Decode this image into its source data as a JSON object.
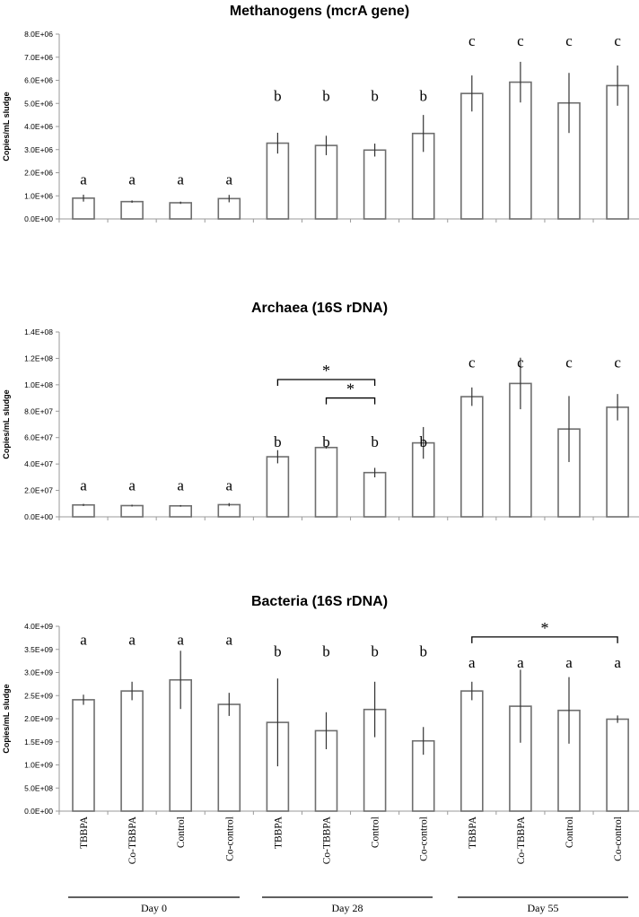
{
  "chart_data": [
    {
      "type": "bar",
      "title": "Methanogens (mcrA gene)",
      "ylabel": "Copies/mL sludge",
      "ylim": [
        0,
        8000000
      ],
      "ticks": [
        0,
        1000000,
        2000000,
        3000000,
        4000000,
        5000000,
        6000000,
        7000000,
        8000000
      ],
      "tick_labels": [
        "0.0E+00",
        "1.0E+06",
        "2.0E+06",
        "3.0E+06",
        "4.0E+06",
        "5.0E+06",
        "6.0E+06",
        "7.0E+06",
        "8.0E+06"
      ],
      "values": [
        900000,
        750000,
        700000,
        880000,
        3280000,
        3180000,
        2980000,
        3700000,
        5430000,
        5920000,
        5020000,
        5770000
      ],
      "errors": [
        150000,
        50000,
        50000,
        160000,
        450000,
        420000,
        280000,
        800000,
        780000,
        880000,
        1300000,
        870000
      ],
      "letters": [
        "a",
        "a",
        "a",
        "a",
        "b",
        "b",
        "b",
        "b",
        "c",
        "c",
        "c",
        "c"
      ],
      "letter_values": [
        1500000,
        1500000,
        1500000,
        1500000,
        5100000,
        5100000,
        5100000,
        5100000,
        7500000,
        7500000,
        7500000,
        7500000
      ],
      "brackets": []
    },
    {
      "type": "bar",
      "title": "Archaea (16S rDNA)",
      "ylabel": "Copies/mL sludge",
      "ylim": [
        0,
        140000000
      ],
      "ticks": [
        0,
        20000000,
        40000000,
        60000000,
        80000000,
        100000000,
        120000000,
        140000000
      ],
      "tick_labels": [
        "0.0E+00",
        "2.0E+07",
        "4.0E+07",
        "6.0E+07",
        "8.0E+07",
        "1.0E+08",
        "1.2E+08",
        "1.4E+08"
      ],
      "values": [
        9000000,
        8500000,
        8300000,
        9200000,
        45500000,
        52500000,
        33500000,
        56000000,
        91000000,
        101000000,
        66500000,
        83000000
      ],
      "errors": [
        800000,
        700000,
        600000,
        1200000,
        5000000,
        800000,
        3600000,
        12000000,
        7000000,
        19500000,
        25000000,
        10000000
      ],
      "letters": [
        "a",
        "a",
        "a",
        "a",
        "b",
        "b",
        "b",
        "b",
        "c",
        "c",
        "c",
        "c"
      ],
      "letter_values": [
        20000000,
        20000000,
        20000000,
        20000000,
        53000000,
        53000000,
        53000000,
        53000000,
        113000000,
        113000000,
        113000000,
        113000000
      ],
      "brackets": [
        {
          "from": 4,
          "to": 6,
          "value": 104000000,
          "label": "*"
        },
        {
          "from": 5,
          "to": 6,
          "value": 90000000,
          "label": "*"
        }
      ]
    },
    {
      "type": "bar",
      "title": "Bacteria (16S rDNA)",
      "ylabel": "Copies/mL sludge",
      "ylim": [
        0,
        4000000000
      ],
      "ticks": [
        0,
        500000000,
        1000000000,
        1500000000,
        2000000000,
        2500000000,
        3000000000,
        3500000000,
        4000000000
      ],
      "tick_labels": [
        "0.0E+00",
        "5.0E+08",
        "1.0E+09",
        "1.5E+09",
        "2.0E+09",
        "2.5E+09",
        "3.0E+09",
        "3.5E+09",
        "4.0E+09"
      ],
      "values": [
        2410000000,
        2600000000,
        2840000000,
        2310000000,
        1920000000,
        1740000000,
        2200000000,
        1520000000,
        2600000000,
        2270000000,
        2180000000,
        1990000000
      ],
      "errors": [
        110000000,
        200000000,
        630000000,
        250000000,
        950000000,
        400000000,
        600000000,
        300000000,
        200000000,
        790000000,
        720000000,
        80000000
      ],
      "letters": [
        "a",
        "a",
        "a",
        "a",
        "b",
        "b",
        "b",
        "b",
        "a",
        "a",
        "a",
        "a"
      ],
      "letter_values": [
        3600000000,
        3600000000,
        3600000000,
        3600000000,
        3350000000,
        3350000000,
        3350000000,
        3350000000,
        3110000000,
        3110000000,
        3110000000,
        3110000000
      ],
      "brackets": [
        {
          "from": 8,
          "to": 11,
          "value": 3770000000,
          "label": "*"
        }
      ]
    }
  ],
  "categories": [
    "TBBPA",
    "Co-TBBPA",
    "Control",
    "Co-control",
    "TBBPA",
    "Co-TBBPA",
    "Control",
    "Co-control",
    "TBBPA",
    "Co-TBBPA",
    "Control",
    "Co-control"
  ],
  "groups": [
    "Day 0",
    "Day 28",
    "Day 55"
  ],
  "colors": {
    "bar_fill": "#ffffff",
    "bar_stroke": "#6e6e6e",
    "axis": "#9a9a9a",
    "text": "#000000"
  }
}
